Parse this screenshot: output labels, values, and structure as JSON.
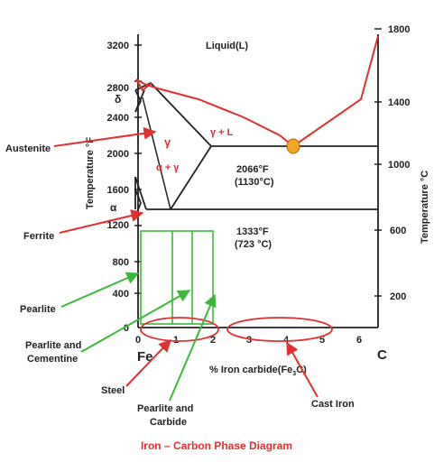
{
  "diagram": {
    "title": "Iron – Carbon Phase Diagram",
    "axes": {
      "left_label": "Temperature °F",
      "right_label": "Temperature °C",
      "bottom_label": "% Iron carbide(Fe3C)",
      "bottom_label_prefix": "% Iron carbide(Fe",
      "bottom_label_sub": "3",
      "bottom_label_suffix": "C)",
      "left_ticks": [
        "3200",
        "2800",
        "2400",
        "2000",
        "1600",
        "1200",
        "800",
        "400",
        "0"
      ],
      "right_ticks": [
        "1800",
        "1400",
        "1000",
        "600",
        "200"
      ],
      "bottom_ticks": [
        "0",
        "1",
        "2",
        "3",
        "4",
        "5",
        "6"
      ],
      "left_end": "Fe",
      "right_end": "C"
    },
    "regions": {
      "liquid": "Liquid(L)",
      "delta": "δ",
      "gamma": "γ",
      "gamma_plus_l": "γ + L",
      "alpha_plus_gamma": "α + γ",
      "alpha": "α"
    },
    "temperatures": {
      "eutectic_f": "2066°F",
      "eutectic_c": "(1130°C)",
      "eutectoid_f": "1333°F",
      "eutectoid_c": "(723 °C)"
    },
    "callouts": {
      "austenite": "Austenite",
      "ferrite": "Ferrite",
      "pearlite": "Pearlite",
      "pearlite_cementine_line1": "Pearlite and",
      "pearlite_cementine_line2": "Cementine",
      "steel": "Steel",
      "pearlite_carbide_line1": "Pearlite and",
      "pearlite_carbide_line2": "Carbide",
      "cast_iron": "Cast Iron"
    },
    "colors": {
      "phase_line": "#222222",
      "liquidus": "#e03030",
      "callout_red": "#e03030",
      "callout_green": "#3cb83c",
      "eutectic_point": "#f5a623",
      "title": "#e03030"
    }
  }
}
